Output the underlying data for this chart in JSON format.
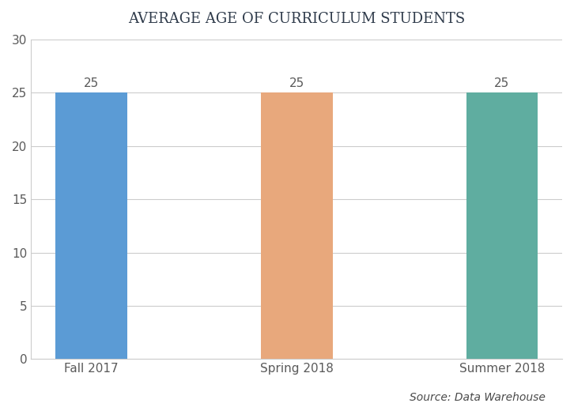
{
  "title": "AVERAGE AGE OF CURRICULUM STUDENTS",
  "categories": [
    "Fall 2017",
    "Spring 2018",
    "Summer 2018"
  ],
  "values": [
    25,
    25,
    25
  ],
  "bar_colors": [
    "#5b9bd5",
    "#e8a87c",
    "#5fada0"
  ],
  "ylim": [
    0,
    30
  ],
  "yticks": [
    0,
    5,
    10,
    15,
    20,
    25,
    30
  ],
  "value_label_color": "#5a5a5a",
  "axis_label_color": "#5a5a5a",
  "title_color": "#2e3a4a",
  "source_text": "Source: Data Warehouse",
  "source_color": "#4a4a4a",
  "background_color": "#ffffff",
  "plot_bg_color": "#ffffff",
  "grid_color": "#cccccc",
  "bar_width": 0.35,
  "title_fontsize": 13,
  "tick_fontsize": 11,
  "label_fontsize": 11,
  "value_fontsize": 11,
  "source_fontsize": 10
}
